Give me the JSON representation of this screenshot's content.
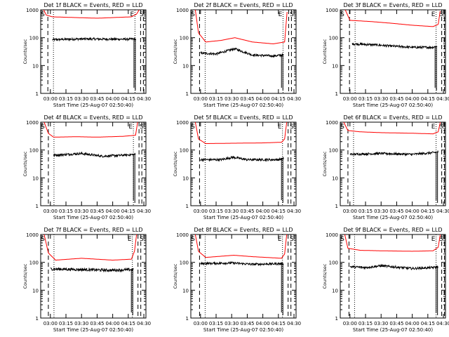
{
  "figure": {
    "colors": {
      "events": "#000000",
      "lld": "#ff0000",
      "axes": "#000000",
      "background": "#ffffff"
    }
  },
  "chart_data": [
    {
      "type": "line",
      "title": "Det 1f BLACK = Events, RED = LLD",
      "xlabel": "Start Time (25-Aug-07 02:50:40)",
      "ylabel": "Counts/sec",
      "y_scale": "log",
      "ylim": [
        1,
        1000
      ],
      "xlim": [
        "02:50:40",
        "04:32:00"
      ],
      "x_ticks": [
        "03:00",
        "03:15",
        "03:30",
        "03:45",
        "04:00",
        "04:15",
        "04:30"
      ],
      "y_ticks": [
        "1",
        "10",
        "100",
        "1000"
      ],
      "markers": [
        "S",
        "E",
        "S"
      ],
      "grid": false,
      "legend": "none",
      "series": [
        {
          "key": "lld",
          "color": "#ff0000",
          "points": [
            [
              "02:53:30",
              1000
            ],
            [
              "02:56:00",
              650
            ],
            [
              "03:02:00",
              560
            ],
            [
              "03:30:00",
              520
            ],
            [
              "03:45:00",
              500
            ],
            [
              "04:18:00",
              560
            ],
            [
              "04:23:00",
              700
            ],
            [
              "04:25:30",
              1000
            ]
          ]
        },
        {
          "key": "events",
          "color": "#000000",
          "points": [
            [
              "03:02:00",
              85
            ],
            [
              "03:30:00",
              90
            ],
            [
              "04:15:00",
              88
            ],
            [
              "04:20:00",
              90
            ],
            [
              "04:22:30",
              85
            ]
          ],
          "noise": 0.08
        }
      ]
    },
    {
      "type": "line",
      "title": "Det 2f BLACK = Events, RED = LLD",
      "xlabel": "Start Time (25-Aug-07 02:50:40)",
      "ylabel": "Counts/sec",
      "y_scale": "log",
      "ylim": [
        1,
        1000
      ],
      "xlim": [
        "02:50:40",
        "04:32:00"
      ],
      "x_ticks": [
        "03:00",
        "03:15",
        "03:30",
        "03:45",
        "04:00",
        "04:15",
        "04:30"
      ],
      "y_ticks": [
        "1",
        "10",
        "100",
        "1000"
      ],
      "markers": [
        "S",
        "E",
        "S"
      ],
      "grid": false,
      "legend": "none",
      "series": [
        {
          "key": "lld",
          "color": "#ff0000",
          "points": [
            [
              "02:55:00",
              1000
            ],
            [
              "02:58:00",
              150
            ],
            [
              "03:05:00",
              70
            ],
            [
              "03:20:00",
              80
            ],
            [
              "03:33:00",
              100
            ],
            [
              "03:50:00",
              70
            ],
            [
              "04:10:00",
              60
            ],
            [
              "04:21:00",
              70
            ],
            [
              "04:23:30",
              1000
            ]
          ]
        },
        {
          "key": "events",
          "color": "#000000",
          "points": [
            [
              "03:00:00",
              28
            ],
            [
              "03:15:00",
              26
            ],
            [
              "03:33:00",
              40
            ],
            [
              "03:50:00",
              24
            ],
            [
              "04:10:00",
              22
            ],
            [
              "04:20:00",
              24
            ]
          ],
          "noise": 0.08
        }
      ]
    },
    {
      "type": "line",
      "title": "Det 3f BLACK = Events, RED = LLD",
      "xlabel": "Start Time (25-Aug-07 02:50:40)",
      "ylabel": "Counts/sec",
      "y_scale": "log",
      "ylim": [
        1,
        1000
      ],
      "xlim": [
        "02:50:40",
        "04:32:00"
      ],
      "x_ticks": [
        "03:00",
        "03:15",
        "03:30",
        "03:45",
        "04:00",
        "04:15",
        "04:30"
      ],
      "y_ticks": [
        "1",
        "10",
        "100",
        "1000"
      ],
      "markers": [
        "S",
        "E",
        "S"
      ],
      "grid": false,
      "legend": "none",
      "series": [
        {
          "key": "lld",
          "color": "#ff0000",
          "points": [
            [
              "02:55:30",
              1000
            ],
            [
              "03:00:00",
              420
            ],
            [
              "03:20:00",
              380
            ],
            [
              "03:40:00",
              330
            ],
            [
              "04:00:00",
              280
            ],
            [
              "04:20:00",
              250
            ],
            [
              "04:25:00",
              300
            ],
            [
              "04:27:00",
              1000
            ]
          ]
        },
        {
          "key": "events",
          "color": "#000000",
          "points": [
            [
              "03:02:00",
              60
            ],
            [
              "03:25:00",
              55
            ],
            [
              "03:40:00",
              50
            ],
            [
              "04:00:00",
              45
            ],
            [
              "04:20:00",
              45
            ],
            [
              "04:24:00",
              50
            ]
          ],
          "noise": 0.08
        }
      ]
    },
    {
      "type": "line",
      "title": "Det 4f BLACK = Events, RED = LLD",
      "xlabel": "Start Time (25-Aug-07 02:50:40)",
      "ylabel": "Counts/sec",
      "y_scale": "log",
      "ylim": [
        1,
        1000
      ],
      "xlim": [
        "02:50:40",
        "04:32:00"
      ],
      "x_ticks": [
        "03:00",
        "03:15",
        "03:30",
        "03:45",
        "04:00",
        "04:15",
        "04:30"
      ],
      "y_ticks": [
        "1",
        "10",
        "100",
        "1000"
      ],
      "markers": [
        "S",
        "E",
        "S"
      ],
      "grid": false,
      "legend": "none",
      "series": [
        {
          "key": "lld",
          "color": "#ff0000",
          "points": [
            [
              "02:54:00",
              1000
            ],
            [
              "02:58:00",
              400
            ],
            [
              "03:03:00",
              290
            ],
            [
              "03:25:00",
              300
            ],
            [
              "03:45:00",
              290
            ],
            [
              "04:10:00",
              310
            ],
            [
              "04:22:00",
              340
            ],
            [
              "04:24:00",
              1000
            ]
          ]
        },
        {
          "key": "events",
          "color": "#000000",
          "points": [
            [
              "03:03:00",
              65
            ],
            [
              "03:30:00",
              75
            ],
            [
              "03:50:00",
              60
            ],
            [
              "04:10:00",
              65
            ],
            [
              "04:22:00",
              70
            ]
          ],
          "noise": 0.08
        }
      ]
    },
    {
      "type": "line",
      "title": "Det 5f BLACK = Events, RED = LLD",
      "xlabel": "Start Time (25-Aug-07 02:50:40)",
      "ylabel": "Counts/sec",
      "y_scale": "log",
      "ylim": [
        1,
        1000
      ],
      "xlim": [
        "02:50:40",
        "04:32:00"
      ],
      "x_ticks": [
        "03:00",
        "03:15",
        "03:30",
        "03:45",
        "04:00",
        "04:15",
        "04:30"
      ],
      "y_ticks": [
        "1",
        "10",
        "100",
        "1000"
      ],
      "markers": [
        "S",
        "E",
        "S"
      ],
      "grid": false,
      "legend": "none",
      "series": [
        {
          "key": "lld",
          "color": "#ff0000",
          "points": [
            [
              "02:55:00",
              1000
            ],
            [
              "02:58:00",
              250
            ],
            [
              "03:05:00",
              170
            ],
            [
              "03:30:00",
              175
            ],
            [
              "04:00:00",
              180
            ],
            [
              "04:18:00",
              190
            ],
            [
              "04:21:00",
              250
            ],
            [
              "04:23:00",
              1000
            ]
          ]
        },
        {
          "key": "events",
          "color": "#000000",
          "points": [
            [
              "03:00:00",
              45
            ],
            [
              "03:20:00",
              45
            ],
            [
              "03:31:00",
              55
            ],
            [
              "03:45:00",
              45
            ],
            [
              "04:15:00",
              45
            ],
            [
              "04:20:00",
              50
            ]
          ],
          "noise": 0.08
        }
      ]
    },
    {
      "type": "line",
      "title": "Det 6f BLACK = Events, RED = LLD",
      "xlabel": "Start Time (25-Aug-07 02:50:40)",
      "ylabel": "Counts/sec",
      "y_scale": "log",
      "ylim": [
        1,
        1000
      ],
      "xlim": [
        "02:50:40",
        "04:32:00"
      ],
      "x_ticks": [
        "03:00",
        "03:15",
        "03:30",
        "03:45",
        "04:00",
        "04:15",
        "04:30"
      ],
      "y_ticks": [
        "1",
        "10",
        "100",
        "1000"
      ],
      "markers": [
        "S",
        "E",
        "S"
      ],
      "grid": false,
      "legend": "none",
      "series": [
        {
          "key": "lld",
          "color": "#ff0000",
          "points": [
            [
              "02:54:00",
              1000
            ],
            [
              "02:58:00",
              500
            ],
            [
              "03:10:00",
              450
            ],
            [
              "03:30:00",
              420
            ],
            [
              "04:00:00",
              400
            ],
            [
              "04:20:00",
              380
            ],
            [
              "04:25:00",
              450
            ],
            [
              "04:27:00",
              1000
            ]
          ]
        },
        {
          "key": "events",
          "color": "#000000",
          "points": [
            [
              "03:00:00",
              70
            ],
            [
              "03:30:00",
              75
            ],
            [
              "04:00:00",
              70
            ],
            [
              "04:20:00",
              80
            ],
            [
              "04:25:00",
              85
            ]
          ],
          "noise": 0.08
        }
      ]
    },
    {
      "type": "line",
      "title": "Det 7f BLACK = Events, RED = LLD",
      "xlabel": "Start Time (25-Aug-07 02:50:40)",
      "ylabel": "Counts/sec",
      "y_scale": "log",
      "ylim": [
        1,
        1000
      ],
      "xlim": [
        "02:50:40",
        "04:32:00"
      ],
      "x_ticks": [
        "03:00",
        "03:15",
        "03:30",
        "03:45",
        "04:00",
        "04:15",
        "04:30"
      ],
      "y_ticks": [
        "1",
        "10",
        "100",
        "1000"
      ],
      "markers": [
        "S",
        "E",
        "S"
      ],
      "grid": false,
      "legend": "none",
      "series": [
        {
          "key": "lld",
          "color": "#ff0000",
          "points": [
            [
              "02:54:00",
              1000
            ],
            [
              "02:58:00",
              220
            ],
            [
              "03:05:00",
              120
            ],
            [
              "03:30:00",
              140
            ],
            [
              "04:00:00",
              120
            ],
            [
              "04:18:00",
              130
            ],
            [
              "04:21:00",
              250
            ],
            [
              "04:23:00",
              1000
            ]
          ]
        },
        {
          "key": "events",
          "color": "#000000",
          "points": [
            [
              "03:00:00",
              58
            ],
            [
              "03:30:00",
              55
            ],
            [
              "04:00:00",
              52
            ],
            [
              "04:20:00",
              55
            ]
          ],
          "noise": 0.1
        }
      ]
    },
    {
      "type": "line",
      "title": "Det 8f BLACK = Events, RED = LLD",
      "xlabel": "Start Time (25-Aug-07 02:50:40)",
      "ylabel": "Counts/sec",
      "y_scale": "log",
      "ylim": [
        1,
        1000
      ],
      "xlim": [
        "02:50:40",
        "04:32:00"
      ],
      "x_ticks": [
        "03:00",
        "03:15",
        "03:30",
        "03:45",
        "04:00",
        "04:15",
        "04:30"
      ],
      "y_ticks": [
        "1",
        "10",
        "100",
        "1000"
      ],
      "markers": [
        "S",
        "E",
        "S"
      ],
      "grid": false,
      "legend": "none",
      "series": [
        {
          "key": "lld",
          "color": "#ff0000",
          "points": [
            [
              "02:55:00",
              1000
            ],
            [
              "02:58:00",
              250
            ],
            [
              "03:05:00",
              150
            ],
            [
              "03:32:00",
              180
            ],
            [
              "03:50:00",
              160
            ],
            [
              "04:18:00",
              140
            ],
            [
              "04:21:00",
              200
            ],
            [
              "04:23:00",
              1000
            ]
          ]
        },
        {
          "key": "events",
          "color": "#000000",
          "points": [
            [
              "03:00:00",
              90
            ],
            [
              "03:30:00",
              95
            ],
            [
              "03:50:00",
              85
            ],
            [
              "04:20:00",
              90
            ]
          ],
          "noise": 0.08
        }
      ]
    },
    {
      "type": "line",
      "title": "Det 9f BLACK = Events, RED = LLD",
      "xlabel": "Start Time (25-Aug-07 02:50:40)",
      "ylabel": "Counts/sec",
      "y_scale": "log",
      "ylim": [
        1,
        1000
      ],
      "xlim": [
        "02:50:40",
        "04:32:00"
      ],
      "x_ticks": [
        "03:00",
        "03:15",
        "03:30",
        "03:45",
        "04:00",
        "04:15",
        "04:30"
      ],
      "y_ticks": [
        "1",
        "10",
        "100",
        "1000"
      ],
      "markers": [
        "S",
        "E",
        "S"
      ],
      "grid": false,
      "legend": "none",
      "series": [
        {
          "key": "lld",
          "color": "#ff0000",
          "points": [
            [
              "02:55:00",
              1000
            ],
            [
              "02:58:00",
              320
            ],
            [
              "03:10:00",
              270
            ],
            [
              "03:30:00",
              260
            ],
            [
              "04:00:00",
              250
            ],
            [
              "04:20:00",
              260
            ],
            [
              "04:25:00",
              350
            ],
            [
              "04:27:00",
              1000
            ]
          ]
        },
        {
          "key": "events",
          "color": "#000000",
          "points": [
            [
              "03:00:00",
              70
            ],
            [
              "03:15:00",
              65
            ],
            [
              "03:30:00",
              75
            ],
            [
              "04:00:00",
              60
            ],
            [
              "04:20:00",
              65
            ],
            [
              "04:25:00",
              70
            ]
          ],
          "noise": 0.08
        }
      ]
    }
  ]
}
